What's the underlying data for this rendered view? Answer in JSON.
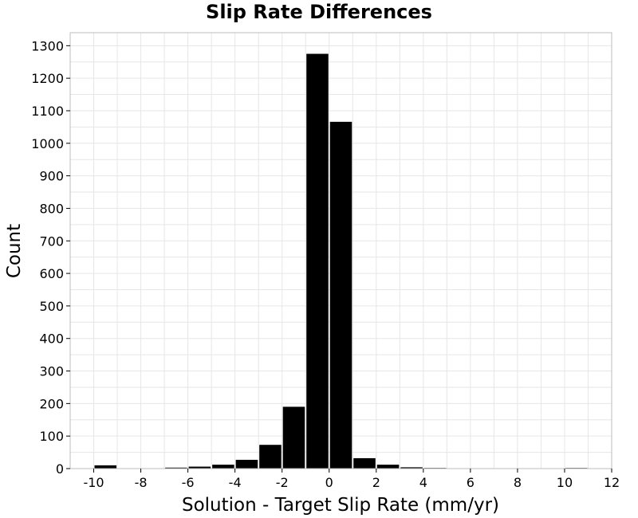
{
  "chart_data": {
    "type": "bar",
    "title": "Slip Rate Differences",
    "xlabel": "Solution - Target Slip Rate (mm/yr)",
    "ylabel": "Count",
    "xlim": [
      -11,
      12
    ],
    "ylim": [
      0,
      1340
    ],
    "bin_width": 1,
    "x_ticks": [
      -10,
      -8,
      -6,
      -4,
      -2,
      0,
      2,
      4,
      6,
      8,
      10,
      12
    ],
    "x_tick_labels": [
      "-10",
      "-8",
      "-6",
      "-4",
      "-2",
      "0",
      "2",
      "4",
      "6",
      "8",
      "10",
      "12"
    ],
    "y_ticks": [
      0,
      100,
      200,
      300,
      400,
      500,
      600,
      700,
      800,
      900,
      1000,
      1100,
      1200,
      1300
    ],
    "y_tick_labels": [
      "0",
      "100",
      "200",
      "300",
      "400",
      "500",
      "600",
      "700",
      "800",
      "900",
      "1000",
      "1100",
      "1200",
      "1300"
    ],
    "bins": [
      {
        "x": -9.5,
        "count": 10
      },
      {
        "x": -8.5,
        "count": 1
      },
      {
        "x": -7.5,
        "count": 1
      },
      {
        "x": -6.5,
        "count": 3
      },
      {
        "x": -5.5,
        "count": 6
      },
      {
        "x": -4.5,
        "count": 12
      },
      {
        "x": -3.5,
        "count": 27
      },
      {
        "x": -2.5,
        "count": 73
      },
      {
        "x": -1.5,
        "count": 190
      },
      {
        "x": -0.5,
        "count": 1275
      },
      {
        "x": 0.5,
        "count": 1066
      },
      {
        "x": 1.5,
        "count": 32
      },
      {
        "x": 2.5,
        "count": 12
      },
      {
        "x": 3.5,
        "count": 4
      },
      {
        "x": 4.5,
        "count": 2
      },
      {
        "x": 10.5,
        "count": 2
      }
    ],
    "grid": true,
    "colors": {
      "bar": "#000000",
      "grid": "#e6e6e6",
      "frame": "#bdbdbd"
    }
  }
}
